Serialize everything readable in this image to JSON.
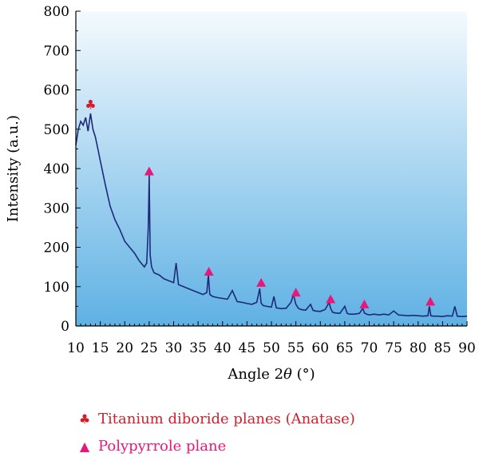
{
  "chart_data": {
    "type": "line",
    "xlabel_prefix": "Angle 2",
    "xlabel_theta": "θ",
    "xlabel_suffix": " (°)",
    "ylabel": "Intensity (a.u.)",
    "xlim": [
      10,
      90
    ],
    "ylim": [
      0,
      800
    ],
    "x_ticks": [
      "10",
      "15",
      "20",
      "25",
      "30",
      "35",
      "40",
      "45",
      "50",
      "55",
      "60",
      "65",
      "70",
      "75",
      "80",
      "85",
      "90"
    ],
    "y_ticks": [
      "0",
      "100",
      "200",
      "300",
      "400",
      "500",
      "600",
      "700",
      "800"
    ],
    "series": [
      {
        "color": "#1e2a78",
        "x": [
          10,
          10.5,
          11,
          11.5,
          12,
          12.5,
          13,
          13.5,
          14,
          14.5,
          15,
          16,
          17,
          18,
          19,
          20,
          21,
          22,
          23,
          24,
          24.5,
          24.8,
          25,
          25.2,
          25.5,
          26,
          27,
          28,
          29,
          30,
          30.5,
          31,
          32,
          33,
          34,
          35,
          36,
          36.8,
          37.1,
          37.4,
          38,
          39,
          40,
          41,
          42,
          43,
          44,
          45,
          46,
          47,
          47.6,
          47.9,
          48.3,
          49,
          50,
          50.5,
          51,
          52,
          53,
          54,
          54.5,
          55,
          55.5,
          56,
          57,
          58,
          58.5,
          59,
          60,
          61,
          61.8,
          62.1,
          62.5,
          63,
          64,
          65,
          65.5,
          66,
          67,
          68,
          68.7,
          69,
          69.5,
          70,
          71,
          72,
          73,
          74,
          75,
          76,
          77,
          78,
          79,
          80,
          81,
          82,
          82.3,
          82.6,
          83,
          84,
          85,
          86,
          87,
          87.5,
          88,
          89,
          90
        ],
        "y": [
          460,
          500,
          520,
          510,
          530,
          495,
          540,
          500,
          480,
          450,
          420,
          360,
          305,
          270,
          245,
          215,
          200,
          185,
          165,
          150,
          160,
          250,
          385,
          180,
          150,
          135,
          130,
          120,
          115,
          110,
          160,
          105,
          100,
          95,
          90,
          85,
          80,
          85,
          130,
          80,
          75,
          72,
          70,
          68,
          90,
          62,
          60,
          57,
          55,
          60,
          95,
          58,
          52,
          50,
          48,
          75,
          46,
          44,
          45,
          60,
          80,
          55,
          45,
          42,
          40,
          55,
          40,
          38,
          37,
          42,
          60,
          45,
          35,
          33,
          32,
          50,
          32,
          30,
          30,
          32,
          45,
          33,
          30,
          28,
          30,
          28,
          30,
          28,
          38,
          28,
          27,
          26,
          27,
          26,
          25,
          26,
          50,
          26,
          25,
          25,
          24,
          26,
          25,
          50,
          25,
          24,
          25
        ]
      }
    ],
    "markers": [
      {
        "type": "club",
        "x": 13,
        "y": 565,
        "color": "#d0202c"
      },
      {
        "type": "triangle",
        "x": 25,
        "y": 393,
        "color": "#e8187a"
      },
      {
        "type": "triangle",
        "x": 37.2,
        "y": 138,
        "color": "#e8187a"
      },
      {
        "type": "triangle",
        "x": 47.9,
        "y": 110,
        "color": "#e8187a"
      },
      {
        "type": "triangle",
        "x": 55,
        "y": 85,
        "color": "#e8187a"
      },
      {
        "type": "triangle",
        "x": 62.1,
        "y": 68,
        "color": "#e8187a"
      },
      {
        "type": "triangle",
        "x": 69,
        "y": 55,
        "color": "#e8187a"
      },
      {
        "type": "triangle",
        "x": 82.5,
        "y": 62,
        "color": "#e8187a"
      }
    ],
    "legend": [
      {
        "symbol": "♣",
        "label": "Titanium diboride planes (Anatase)",
        "color": "#d0202c"
      },
      {
        "symbol": "▲",
        "label": "Polypyrrole plane",
        "color": "#e8187a"
      }
    ],
    "background_gradient": [
      "#f4fafe",
      "#5fb1e4"
    ]
  }
}
